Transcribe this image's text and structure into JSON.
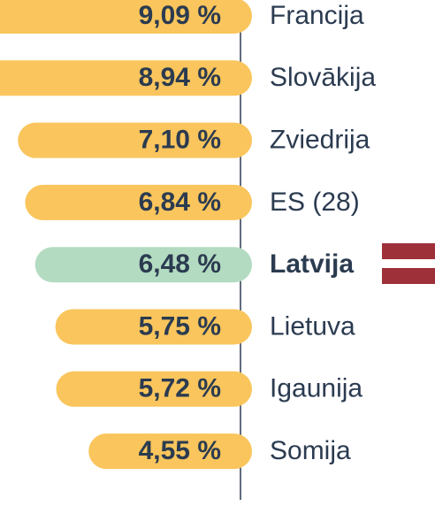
{
  "chart_data": {
    "type": "hbar",
    "categories": [
      "Francija",
      "Slovākija",
      "Zviedrija",
      "ES (28)",
      "Latvija",
      "Lietuva",
      "Igaunija",
      "Somija"
    ],
    "values": [
      9.09,
      8.94,
      7.1,
      6.84,
      6.48,
      5.75,
      5.72,
      4.55
    ],
    "value_labels": [
      "9,09 %",
      "8,94 %",
      "7,10 %",
      "6,84 %",
      "6,48 %",
      "5,75 %",
      "5,72 %",
      "4,55 %"
    ],
    "colors": [
      "#f9c55c",
      "#f9c55c",
      "#f9c55c",
      "#f9c55c",
      "#b3dbc1",
      "#f9c55c",
      "#f9c55c",
      "#f9c55c"
    ],
    "bold": [
      false,
      false,
      false,
      false,
      true,
      false,
      false,
      false
    ],
    "xlim": [
      0,
      8
    ]
  }
}
